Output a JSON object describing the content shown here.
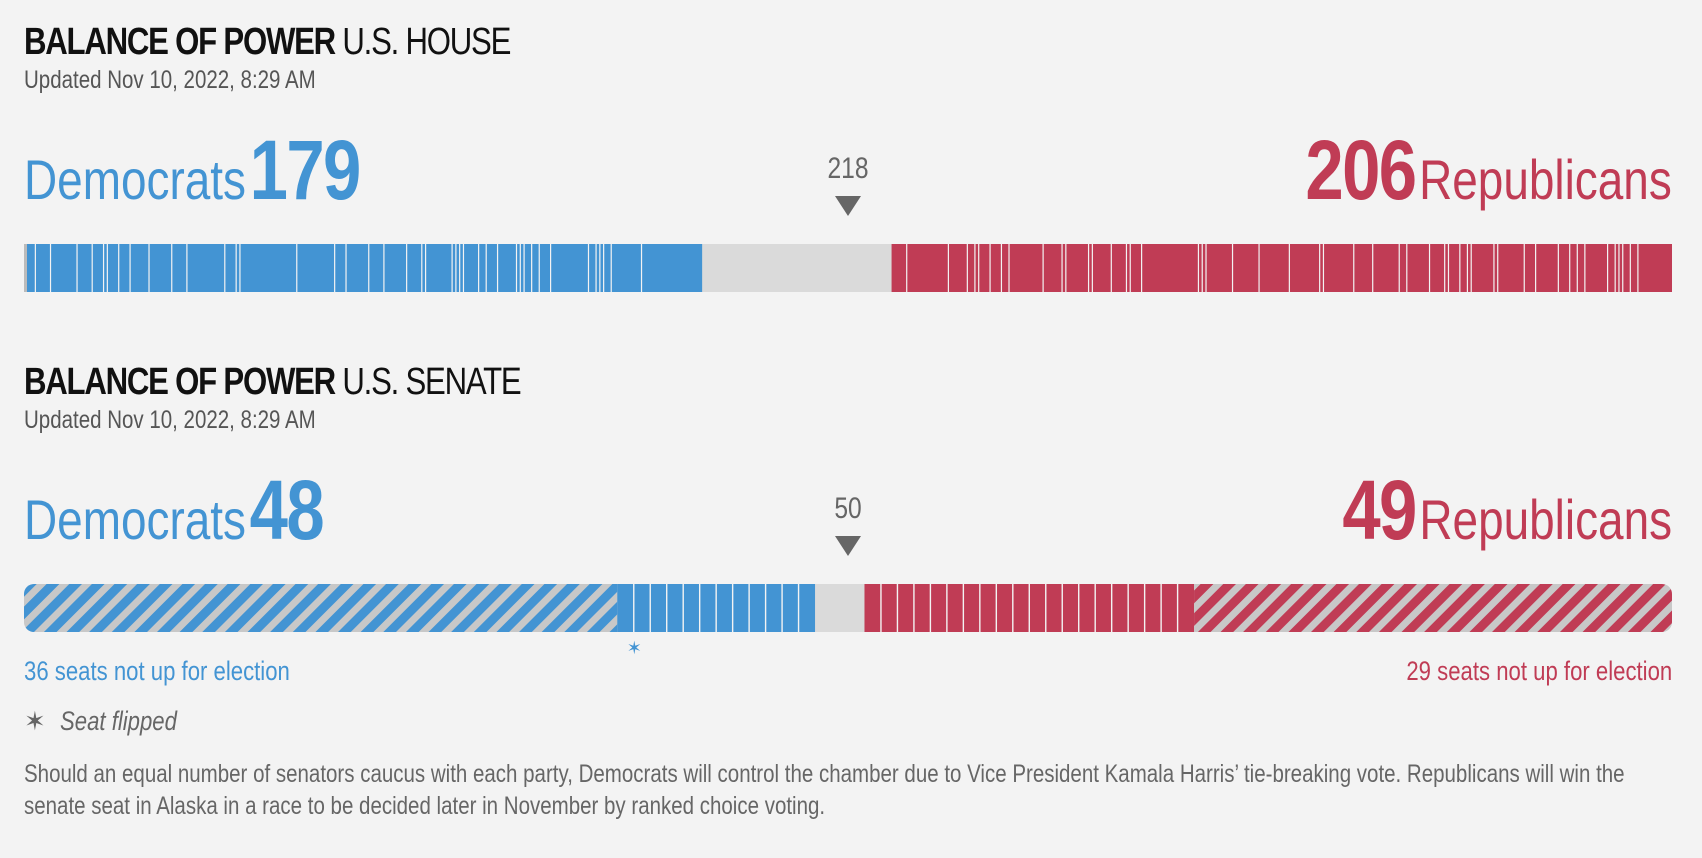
{
  "colors": {
    "dem": "#4394d3",
    "rep": "#c03c55",
    "empty": "#dadada",
    "text": "#222222",
    "muted": "#666666"
  },
  "house": {
    "title_bold": "BALANCE OF POWER",
    "title_light": "U.S. HOUSE",
    "updated": "Updated Nov 10, 2022, 8:29 AM",
    "dem_label": "Democrats",
    "dem_count": "179",
    "rep_label": "Republicans",
    "rep_count": "206",
    "majority": "218"
  },
  "senate": {
    "title_bold": "BALANCE OF POWER",
    "title_light": "U.S. SENATE",
    "updated": "Updated Nov 10, 2022, 8:29 AM",
    "dem_label": "Democrats",
    "dem_count": "48",
    "rep_label": "Republicans",
    "rep_count": "49",
    "majority": "50",
    "dem_not_up": "36 seats not up for election",
    "rep_not_up": "29 seats not up for election",
    "flip_legend": "Seat flipped",
    "flip_icon": "star-icon"
  },
  "footnote": "Should an equal number of senators caucus with each party, Democrats will control the chamber due to Vice President Kamala Harris’ tie-breaking vote. Republicans will win the senate seat in Alaska in a race to be decided later in November by ranked choice voting.",
  "chart_data": [
    {
      "type": "bar",
      "title": "BALANCE OF POWER U.S. HOUSE",
      "total_seats": 435,
      "majority": 218,
      "series": [
        {
          "name": "Democrats",
          "values": [
            179
          ]
        },
        {
          "name": "Republicans",
          "values": [
            206
          ]
        }
      ],
      "undecided": 50
    },
    {
      "type": "bar",
      "title": "BALANCE OF POWER U.S. SENATE",
      "total_seats": 100,
      "majority": 50,
      "series": [
        {
          "name": "Democrats",
          "values": [
            48
          ],
          "not_up_for_election": 36,
          "flipped": 1
        },
        {
          "name": "Republicans",
          "values": [
            49
          ],
          "not_up_for_election": 29
        }
      ],
      "undecided": 3
    }
  ]
}
